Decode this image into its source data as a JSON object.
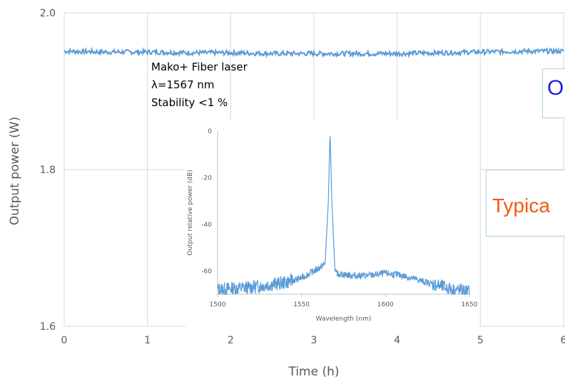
{
  "chart_data": [
    {
      "type": "line",
      "title": "",
      "xlabel": "Time (h)",
      "ylabel": "Output power (W)",
      "xlim": [
        0,
        6
      ],
      "ylim": [
        1.6,
        2.0
      ],
      "x_ticks": [
        "0",
        "1",
        "2",
        "3",
        "4",
        "5",
        "6"
      ],
      "y_ticks": [
        "1.6",
        "1.8",
        "2.0"
      ],
      "grid": true,
      "series_color": "#5b9bd5",
      "x": [
        0,
        0.5,
        1,
        1.5,
        2,
        2.5,
        3,
        3.5,
        4,
        4.5,
        5,
        5.5,
        6
      ],
      "y": [
        1.951,
        1.95,
        1.95,
        1.949,
        1.949,
        1.948,
        1.948,
        1.948,
        1.948,
        1.949,
        1.95,
        1.951,
        1.951
      ],
      "annotations": [
        "Mako+ Fiber laser",
        "λ=1567 nm",
        "Stability <1 %"
      ]
    },
    {
      "type": "line",
      "title": "",
      "xlabel": "Wavelength (nm)",
      "ylabel": "Output relative power (dB)",
      "xlim": [
        1500,
        1650
      ],
      "ylim": [
        -70,
        0
      ],
      "x_ticks": [
        "1500",
        "1550",
        "1600",
        "1650"
      ],
      "y_ticks": [
        "0",
        "-20",
        "-40",
        "-60"
      ],
      "grid": false,
      "series_color": "#5b9bd5",
      "x": [
        1500,
        1520,
        1540,
        1550,
        1555,
        1560,
        1564,
        1566,
        1567,
        1568,
        1570,
        1580,
        1590,
        1600,
        1610,
        1620,
        1630,
        1640,
        1650
      ],
      "y": [
        -68,
        -67,
        -65,
        -63,
        -61,
        -59,
        -57,
        -30,
        0,
        -30,
        -61,
        -62,
        -62,
        -61,
        -62,
        -64,
        -66,
        -68,
        -69
      ]
    }
  ],
  "callouts": {
    "blue_text": "O",
    "orange_text": "Typica"
  }
}
